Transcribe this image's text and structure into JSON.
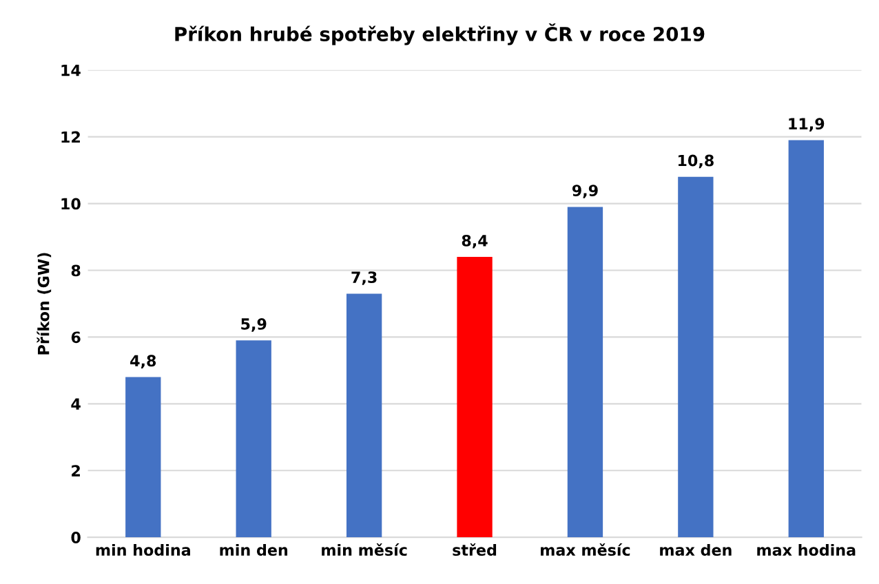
{
  "chart_data": {
    "type": "bar",
    "title": "Příkon hrubé spotřeby elektřiny v ČR v roce 2019",
    "ylabel": "Příkon (GW)",
    "categories": [
      "min hodina",
      "min den",
      "min měsíc",
      "střed",
      "max měsíc",
      "max den",
      "max hodina"
    ],
    "values": [
      4.8,
      5.9,
      7.3,
      8.4,
      9.9,
      10.8,
      11.9
    ],
    "value_labels": [
      "4,8",
      "5,9",
      "7,3",
      "8,4",
      "9,9",
      "10,8",
      "11,9"
    ],
    "colors": [
      "#4472c4",
      "#4472c4",
      "#4472c4",
      "#ff0000",
      "#4472c4",
      "#4472c4",
      "#4472c4"
    ],
    "ylim": [
      0,
      14
    ],
    "yticks": [
      0,
      2,
      4,
      6,
      8,
      10,
      12,
      14
    ],
    "grid": "y"
  }
}
